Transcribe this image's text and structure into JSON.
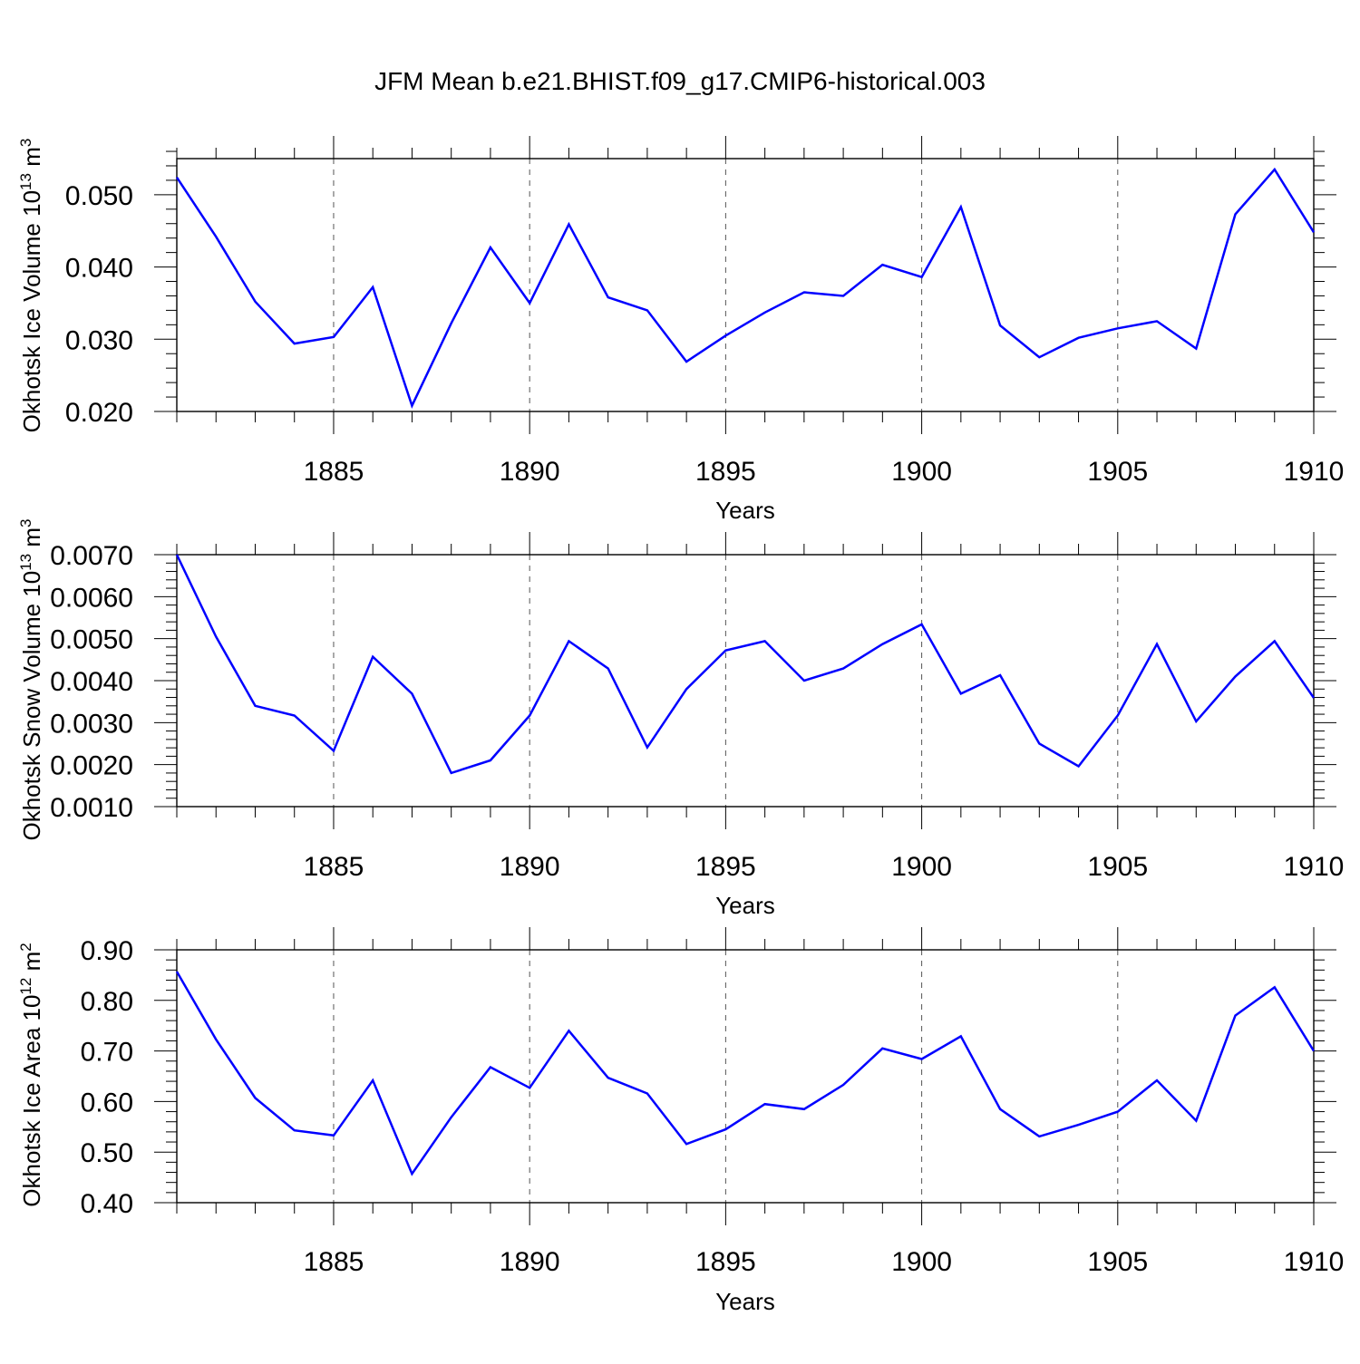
{
  "title": "JFM Mean b.e21.BHIST.f09_g17.CMIP6-historical.003",
  "colors": {
    "series": "#0000ff",
    "axis": "#000000",
    "grid": "#555555"
  },
  "chart_data": [
    {
      "type": "line",
      "name": "ice-volume",
      "ylabel": "Okhotsk Ice Volume 10",
      "ylabel_exp": "13",
      "ylabel_unit": "m",
      "ylabel_unit_exp": "3",
      "xlabel": "Years",
      "xlim": [
        1881,
        1910
      ],
      "ylim": [
        0.02,
        0.055
      ],
      "yticks": [
        0.02,
        0.03,
        0.04,
        0.05
      ],
      "ytick_labels": [
        "0.020",
        "0.030",
        "0.040",
        "0.050"
      ],
      "xticks": [
        1885,
        1890,
        1895,
        1900,
        1905,
        1910
      ],
      "xtick_labels": [
        "1885",
        "1890",
        "1895",
        "1900",
        "1905",
        "1910"
      ],
      "x": [
        1881,
        1882,
        1883,
        1884,
        1885,
        1886,
        1887,
        1888,
        1889,
        1890,
        1891,
        1892,
        1893,
        1894,
        1895,
        1896,
        1897,
        1898,
        1899,
        1900,
        1901,
        1902,
        1903,
        1904,
        1905,
        1906,
        1907,
        1908,
        1909,
        1910
      ],
      "values": [
        0.0524,
        0.0442,
        0.0352,
        0.0294,
        0.0303,
        0.0372,
        0.0208,
        0.0322,
        0.0427,
        0.035,
        0.0459,
        0.0358,
        0.034,
        0.0269,
        0.0305,
        0.0337,
        0.0365,
        0.036,
        0.0403,
        0.0386,
        0.0483,
        0.0319,
        0.0275,
        0.0302,
        0.0315,
        0.0325,
        0.0287,
        0.0473,
        0.0535,
        0.0448
      ]
    },
    {
      "type": "line",
      "name": "snow-volume",
      "ylabel": "Okhotsk Snow Volume 10",
      "ylabel_exp": "13",
      "ylabel_unit": "m",
      "ylabel_unit_exp": "3",
      "xlabel": "Years",
      "xlim": [
        1881,
        1910
      ],
      "ylim": [
        0.001,
        0.007
      ],
      "yticks": [
        0.001,
        0.002,
        0.003,
        0.004,
        0.005,
        0.006,
        0.007
      ],
      "ytick_labels": [
        "0.0010",
        "0.0020",
        "0.0030",
        "0.0040",
        "0.0050",
        "0.0060",
        "0.0070"
      ],
      "xticks": [
        1885,
        1890,
        1895,
        1900,
        1905,
        1910
      ],
      "xtick_labels": [
        "1885",
        "1890",
        "1895",
        "1900",
        "1905",
        "1910"
      ],
      "x": [
        1881,
        1882,
        1883,
        1884,
        1885,
        1886,
        1887,
        1888,
        1889,
        1890,
        1891,
        1892,
        1893,
        1894,
        1895,
        1896,
        1897,
        1898,
        1899,
        1900,
        1901,
        1902,
        1903,
        1904,
        1905,
        1906,
        1907,
        1908,
        1909,
        1910
      ],
      "values": [
        0.007,
        0.00505,
        0.0034,
        0.00317,
        0.00233,
        0.00457,
        0.00369,
        0.0018,
        0.0021,
        0.00317,
        0.00494,
        0.00429,
        0.00241,
        0.0038,
        0.00472,
        0.00494,
        0.004,
        0.00429,
        0.00487,
        0.00534,
        0.00369,
        0.00413,
        0.0025,
        0.00196,
        0.00317,
        0.00487,
        0.00303,
        0.0041,
        0.00494,
        0.00359
      ]
    },
    {
      "type": "line",
      "name": "ice-area",
      "ylabel": "Okhotsk Ice Area 10",
      "ylabel_exp": "12",
      "ylabel_unit": "m",
      "ylabel_unit_exp": "2",
      "xlabel": "Years",
      "xlim": [
        1881,
        1910
      ],
      "ylim": [
        0.4,
        0.9
      ],
      "yticks": [
        0.4,
        0.5,
        0.6,
        0.7,
        0.8,
        0.9
      ],
      "ytick_labels": [
        "0.40",
        "0.50",
        "0.60",
        "0.70",
        "0.80",
        "0.90"
      ],
      "xticks": [
        1885,
        1890,
        1895,
        1900,
        1905,
        1910
      ],
      "xtick_labels": [
        "1885",
        "1890",
        "1895",
        "1900",
        "1905",
        "1910"
      ],
      "x": [
        1881,
        1882,
        1883,
        1884,
        1885,
        1886,
        1887,
        1888,
        1889,
        1890,
        1891,
        1892,
        1893,
        1894,
        1895,
        1896,
        1897,
        1898,
        1899,
        1900,
        1901,
        1902,
        1903,
        1904,
        1905,
        1906,
        1907,
        1908,
        1909,
        1910
      ],
      "values": [
        0.857,
        0.723,
        0.607,
        0.543,
        0.533,
        0.642,
        0.457,
        0.569,
        0.668,
        0.627,
        0.74,
        0.647,
        0.616,
        0.516,
        0.545,
        0.595,
        0.585,
        0.633,
        0.705,
        0.684,
        0.729,
        0.585,
        0.531,
        0.554,
        0.58,
        0.642,
        0.562,
        0.77,
        0.826,
        0.7
      ]
    }
  ]
}
